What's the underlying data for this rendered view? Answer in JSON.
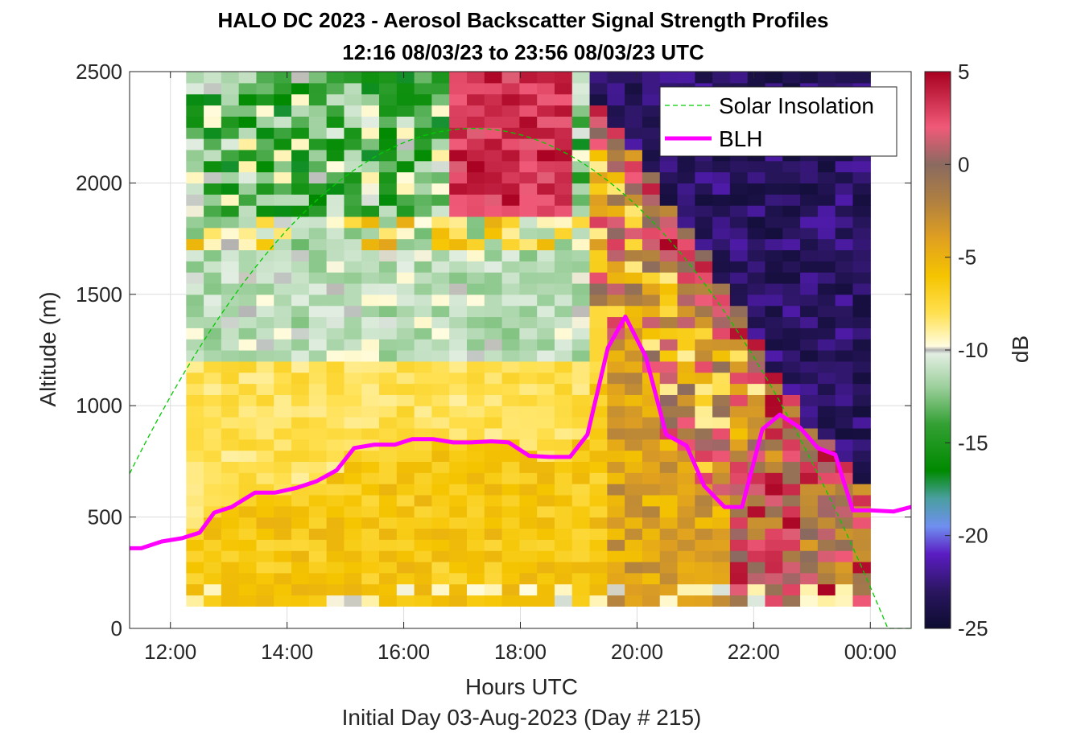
{
  "chart_data": {
    "type": "heatmap",
    "title": "HALO DC 2023 - Aerosol Backscatter Signal Strength Profiles",
    "subtitle": "12:16 08/03/23 to 23:56 08/03/23  UTC",
    "xlabel": "Hours UTC",
    "ylabel": "Altitude (m)",
    "footer": "Initial Day 03-Aug-2023 (Day # 215)",
    "colorbar_label": "dB",
    "xlim_hours": [
      11.3,
      24.7
    ],
    "ylim": [
      0,
      2500
    ],
    "x_ticks": [
      {
        "hour": 12,
        "label": "12:00"
      },
      {
        "hour": 14,
        "label": "14:00"
      },
      {
        "hour": 16,
        "label": "16:00"
      },
      {
        "hour": 18,
        "label": "18:00"
      },
      {
        "hour": 20,
        "label": "20:00"
      },
      {
        "hour": 22,
        "label": "22:00"
      },
      {
        "hour": 24,
        "label": "00:00"
      }
    ],
    "y_ticks": [
      0,
      500,
      1000,
      1500,
      2000,
      2500
    ],
    "colorbar_ticks": [
      5,
      0,
      -5,
      -10,
      -15,
      -20,
      -25
    ],
    "clim": [
      -25,
      5
    ],
    "grid": true,
    "legend_position": "top-right",
    "heatmap": {
      "x_start_hour": 12.27,
      "x_end_hour": 24.0,
      "columns": 39,
      "y_bottom": 100,
      "y_top": 2500,
      "rows": 48,
      "value_range_db": [
        -25,
        5
      ]
    },
    "series": [
      {
        "name": "BLH",
        "color": "#ff00ff",
        "x_hours": [
          11.3,
          11.5,
          11.85,
          12.2,
          12.5,
          12.75,
          13.05,
          13.45,
          13.8,
          14.15,
          14.5,
          14.85,
          15.15,
          15.5,
          15.85,
          16.15,
          16.5,
          16.85,
          17.15,
          17.5,
          17.8,
          18.15,
          18.5,
          18.85,
          19.15,
          19.5,
          19.8,
          20.15,
          20.5,
          20.85,
          21.15,
          21.5,
          21.8,
          22.15,
          22.45,
          22.8,
          23.1,
          23.4,
          23.7,
          24.0,
          24.4,
          24.7
        ],
        "y": [
          360,
          360,
          390,
          405,
          430,
          520,
          545,
          610,
          610,
          630,
          660,
          710,
          810,
          825,
          825,
          850,
          850,
          835,
          835,
          840,
          835,
          775,
          770,
          770,
          870,
          1260,
          1400,
          1220,
          870,
          820,
          640,
          545,
          545,
          895,
          960,
          900,
          810,
          780,
          530,
          530,
          525,
          545
        ]
      },
      {
        "name": "Solar Insolation",
        "color": "#00cc00",
        "style": "dashed",
        "sunrise_hour": 10.1,
        "sunset_hour": 24.3,
        "peak_hour": 17.2,
        "peak_altitude": 2245
      }
    ],
    "colormap_stops": [
      {
        "db": -25,
        "color": "#0d0c30"
      },
      {
        "db": -23,
        "color": "#2a1660"
      },
      {
        "db": -21,
        "color": "#5b1cc2"
      },
      {
        "db": -19.5,
        "color": "#6f8ff0"
      },
      {
        "db": -18,
        "color": "#4a9fa0"
      },
      {
        "db": -16.5,
        "color": "#008a00"
      },
      {
        "db": -14,
        "color": "#33a033"
      },
      {
        "db": -12,
        "color": "#9ccf9c"
      },
      {
        "db": -10.2,
        "color": "#e2eee2"
      },
      {
        "db": -10,
        "color": "#b0b0b0"
      },
      {
        "db": -9.8,
        "color": "#fffce0"
      },
      {
        "db": -8,
        "color": "#ffe050"
      },
      {
        "db": -6,
        "color": "#f5c400"
      },
      {
        "db": -4,
        "color": "#e0a020"
      },
      {
        "db": -2,
        "color": "#b08040"
      },
      {
        "db": 0,
        "color": "#8a6a60"
      },
      {
        "db": 2,
        "color": "#f05a78"
      },
      {
        "db": 5,
        "color": "#a80020"
      }
    ]
  }
}
